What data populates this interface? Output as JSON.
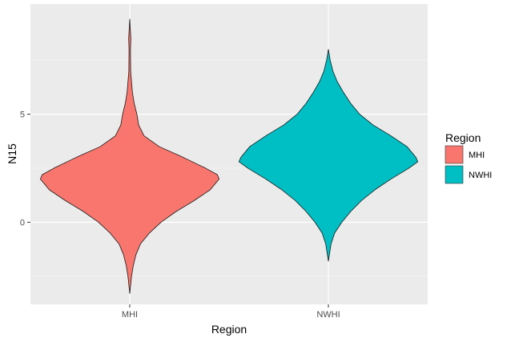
{
  "chart_data": {
    "type": "violin",
    "xlabel": "Region",
    "ylabel": "N15",
    "categories": [
      "MHI",
      "NWHI"
    ],
    "yticks": [
      0,
      5
    ],
    "ylim": [
      -3.8,
      10.1
    ],
    "grid": true,
    "legend": {
      "title": "Region",
      "placement": "right",
      "entries": [
        {
          "label": "MHI",
          "color": "#F8766D"
        },
        {
          "label": "NWHI",
          "color": "#00BFC4"
        }
      ]
    },
    "series": [
      {
        "category": "MHI",
        "color": "#F8766D",
        "y_min": -3.3,
        "y_max": 9.4,
        "profile": [
          [
            -3.3,
            0.0
          ],
          [
            -2.5,
            0.02
          ],
          [
            -2.0,
            0.04
          ],
          [
            -1.5,
            0.07
          ],
          [
            -1.0,
            0.12
          ],
          [
            -0.5,
            0.22
          ],
          [
            0.0,
            0.35
          ],
          [
            0.5,
            0.52
          ],
          [
            1.0,
            0.72
          ],
          [
            1.5,
            0.9
          ],
          [
            2.0,
            1.0
          ],
          [
            2.2,
            0.98
          ],
          [
            2.5,
            0.85
          ],
          [
            3.0,
            0.6
          ],
          [
            3.5,
            0.33
          ],
          [
            4.0,
            0.16
          ],
          [
            4.5,
            0.1
          ],
          [
            5.0,
            0.08
          ],
          [
            5.5,
            0.05
          ],
          [
            6.0,
            0.03
          ],
          [
            6.5,
            0.02
          ],
          [
            7.0,
            0.01
          ],
          [
            8.0,
            0.008
          ],
          [
            8.5,
            0.012
          ],
          [
            9.4,
            0.0
          ]
        ]
      },
      {
        "category": "NWHI",
        "color": "#00BFC4",
        "y_min": -1.8,
        "y_max": 8.0,
        "profile": [
          [
            -1.8,
            0.0
          ],
          [
            -1.0,
            0.03
          ],
          [
            -0.5,
            0.07
          ],
          [
            0.0,
            0.15
          ],
          [
            0.5,
            0.25
          ],
          [
            1.0,
            0.37
          ],
          [
            1.5,
            0.52
          ],
          [
            2.0,
            0.7
          ],
          [
            2.5,
            0.9
          ],
          [
            2.8,
            1.0
          ],
          [
            3.0,
            0.98
          ],
          [
            3.5,
            0.88
          ],
          [
            4.0,
            0.7
          ],
          [
            4.5,
            0.5
          ],
          [
            5.0,
            0.35
          ],
          [
            5.5,
            0.25
          ],
          [
            6.0,
            0.17
          ],
          [
            6.5,
            0.1
          ],
          [
            7.0,
            0.05
          ],
          [
            7.5,
            0.02
          ],
          [
            8.0,
            0.0
          ]
        ]
      }
    ]
  }
}
